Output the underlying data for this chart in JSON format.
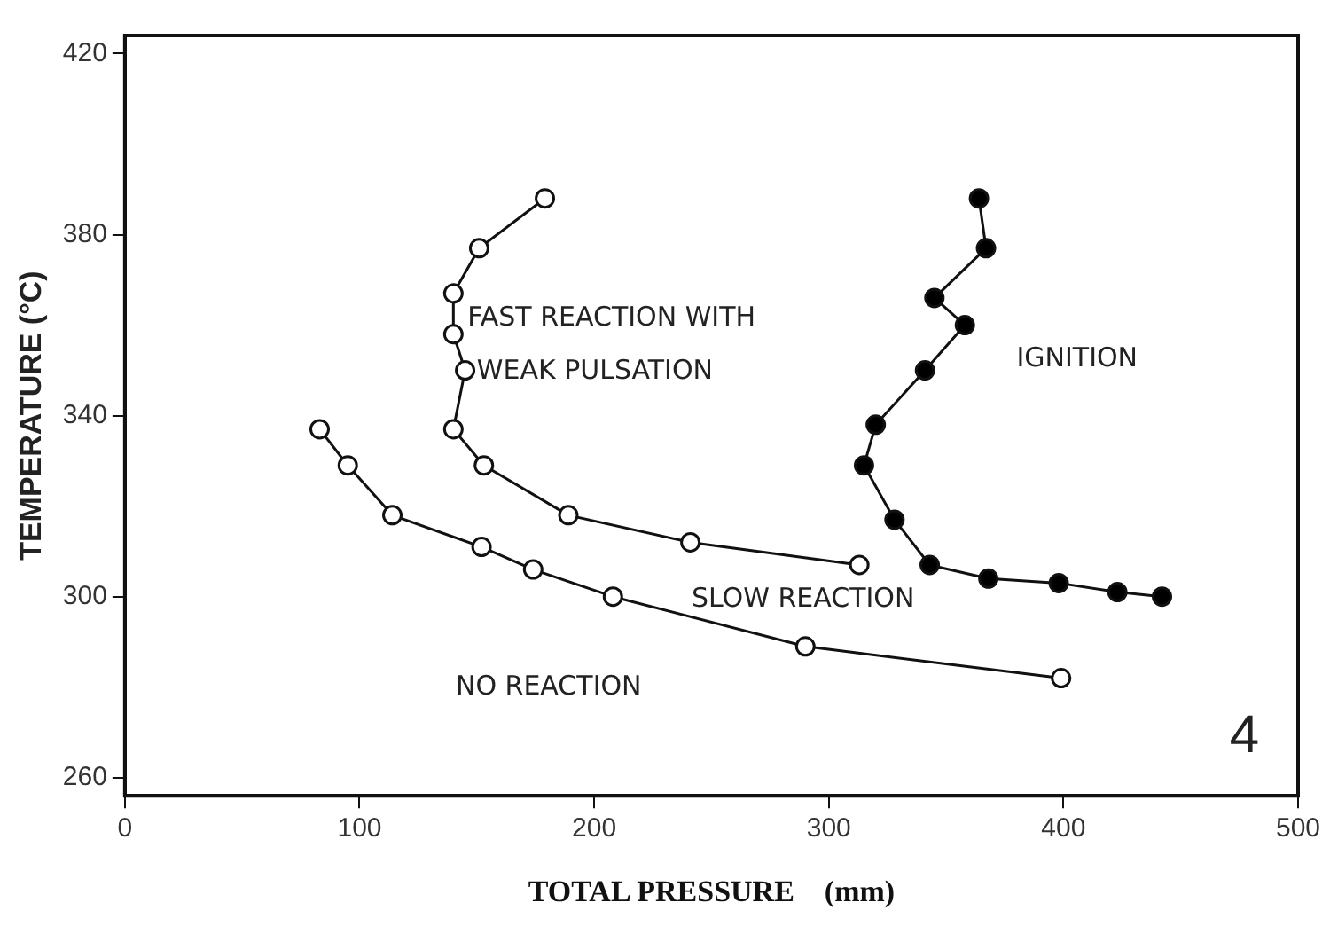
{
  "chart_data": {
    "type": "line",
    "xlabel": "TOTAL PRESSURE    (mm)",
    "ylabel": "TEMPERATURE (°C)",
    "xlim": [
      0,
      500
    ],
    "xticks": [
      0,
      100,
      200,
      300,
      400,
      500
    ],
    "ylim": [
      256,
      424
    ],
    "yticks": [
      260,
      300,
      340,
      380,
      420
    ],
    "grid": false,
    "legend": false,
    "marker": "circle",
    "line_style": "solid",
    "series": [
      {
        "color": "#ffffff",
        "x": [
          179,
          151,
          140,
          140,
          145,
          140,
          153,
          189,
          241,
          313
        ],
        "values": [
          388,
          377,
          367,
          358,
          350,
          337,
          329,
          318,
          312,
          307
        ]
      },
      {
        "color": "#ffffff",
        "x": [
          83,
          95,
          114,
          152,
          174,
          208,
          290,
          399
        ],
        "values": [
          337,
          329,
          318,
          311,
          306,
          300,
          289,
          282
        ]
      },
      {
        "color": "#000000",
        "x": [
          364,
          367,
          345,
          358,
          341,
          320,
          315,
          328,
          343,
          368,
          398,
          423,
          442
        ],
        "values": [
          388,
          377,
          366,
          360,
          350,
          338,
          329,
          317,
          307,
          304,
          303,
          301,
          300
        ]
      }
    ],
    "annotations": [
      "FAST REACTION WITH",
      "WEAK PULSATION",
      "IGNITION",
      "SLOW REACTION",
      "NO REACTION",
      "4"
    ]
  }
}
